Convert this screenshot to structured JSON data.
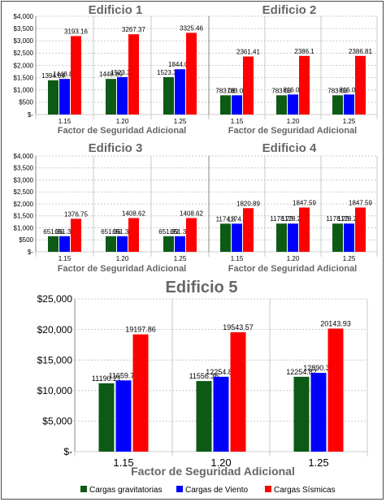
{
  "colors": {
    "gravitatorias": "#0c5a16",
    "viento": "#0000ff",
    "sismicas": "#ff0000",
    "title": "#666666",
    "axis_title": "#666666",
    "grid": "#bbbbbb",
    "text": "#000000"
  },
  "chart_data": [
    {
      "type": "bar",
      "title": "Edificio 1",
      "categories": [
        "1.15",
        "1.20",
        "1.25"
      ],
      "xlabel": "Factor de Seguridad Adicional",
      "ylabel": "",
      "ylim": [
        0,
        4000
      ],
      "yticks": [
        0,
        500,
        1000,
        1500,
        2000,
        2500,
        3000,
        3500,
        4000
      ],
      "ytick_labels": [
        "$-",
        "$500",
        "$1,000",
        "$1,500",
        "$2,000",
        "$2,500",
        "$3,000",
        "$3,500",
        "$4,000"
      ],
      "series": [
        {
          "values": [
            1394.04,
            1448.89,
            1523.32
          ],
          "labels": [
            "1394.04",
            "1448.89",
            "1523.32"
          ]
        },
        {
          "values": [
            1448.89,
            1523.39,
            1844.04
          ],
          "labels": [
            "1448.89",
            "1523.39",
            "1844.04"
          ]
        },
        {
          "values": [
            3193.16,
            3267.37,
            3325.46
          ],
          "labels": [
            "3193.16",
            "3267.37",
            "3325.46"
          ]
        }
      ]
    },
    {
      "type": "bar",
      "title": "Edificio 2",
      "categories": [
        "1.15",
        "1.20",
        "1.25"
      ],
      "xlabel": "Factor de Seguridad Adicional",
      "ylabel": "",
      "ylim": [
        0,
        4000
      ],
      "series": [
        {
          "values": [
            783.08,
            783.08,
            783.08
          ],
          "labels": [
            "783.08",
            "783.08",
            "783.08"
          ]
        },
        {
          "values": [
            783.08,
            816.08,
            816.08
          ],
          "labels": [
            "783.08",
            "816.08",
            "816.08"
          ]
        },
        {
          "values": [
            2361.41,
            2386.1,
            2386.81
          ],
          "labels": [
            "2361.41",
            "2386.1",
            "2386.81"
          ]
        }
      ]
    },
    {
      "type": "bar",
      "title": "Edificio 3",
      "categories": [
        "1.15",
        "1.20",
        "1.25"
      ],
      "xlabel": "Factor de Seguridad Adicional",
      "ylabel": "",
      "ylim": [
        0,
        4000
      ],
      "yticks": [
        0,
        500,
        1000,
        1500,
        2000,
        2500,
        3000,
        3500,
        4000
      ],
      "ytick_labels": [
        "$-",
        "$500",
        "$1,000",
        "$1,500",
        "$2,000",
        "$2,500",
        "$3,000",
        "$3,500",
        "$4,000"
      ],
      "series": [
        {
          "values": [
            651.36,
            651.36,
            651.39
          ],
          "labels": [
            "651.36",
            "651.36",
            "651.39"
          ]
        },
        {
          "values": [
            651.36,
            651.36,
            651.39
          ],
          "labels": [
            "651.36",
            "651.36",
            "651.39"
          ]
        },
        {
          "values": [
            1376.75,
            1408.62,
            1408.62
          ],
          "labels": [
            "1376.75",
            "1408.62",
            "1408.62"
          ]
        }
      ]
    },
    {
      "type": "bar",
      "title": "Edificio 4",
      "categories": [
        "1.15",
        "1.20",
        "1.25"
      ],
      "xlabel": "Factor de Seguridad Adicional",
      "ylabel": "",
      "ylim": [
        0,
        4000
      ],
      "series": [
        {
          "values": [
            1174.8,
            1178.23,
            1178.23
          ],
          "labels": [
            "1174.8",
            "1178.23",
            "1178.23"
          ]
        },
        {
          "values": [
            1174.8,
            1178.23,
            1178.23
          ],
          "labels": [
            "1174.8",
            "1178.23",
            "1178.23"
          ]
        },
        {
          "values": [
            1820.89,
            1847.59,
            1847.59
          ],
          "labels": [
            "1820.89",
            "1847.59",
            "1847.59"
          ]
        }
      ]
    },
    {
      "type": "bar",
      "title": "Edificio 5",
      "categories": [
        "1.15",
        "1.20",
        "1.25"
      ],
      "xlabel": "Factor de Seguridad Adicional",
      "ylabel": "",
      "ylim": [
        0,
        25000
      ],
      "yticks": [
        0,
        5000,
        10000,
        15000,
        20000,
        25000
      ],
      "ytick_labels": [
        "$-",
        "$5,000",
        "$10,000",
        "$15,000",
        "$20,000",
        "$25,000"
      ],
      "series": [
        {
          "name": "Cargas gravitatorias",
          "values": [
            11190.21,
            11556.36,
            12254.82
          ],
          "labels": [
            "11190.21",
            "11556.36",
            "12254.82"
          ]
        },
        {
          "name": "Cargas de Viento",
          "values": [
            11659.76,
            12254.82,
            12890.31
          ],
          "labels": [
            "11659.76",
            "12254.82",
            "12890.31"
          ]
        },
        {
          "name": "Cargas Sísmicas",
          "values": [
            19197.86,
            19543.57,
            20143.93
          ],
          "labels": [
            "19197.86",
            "19543.57",
            "20143.93"
          ]
        }
      ],
      "legend": "bottom"
    }
  ]
}
